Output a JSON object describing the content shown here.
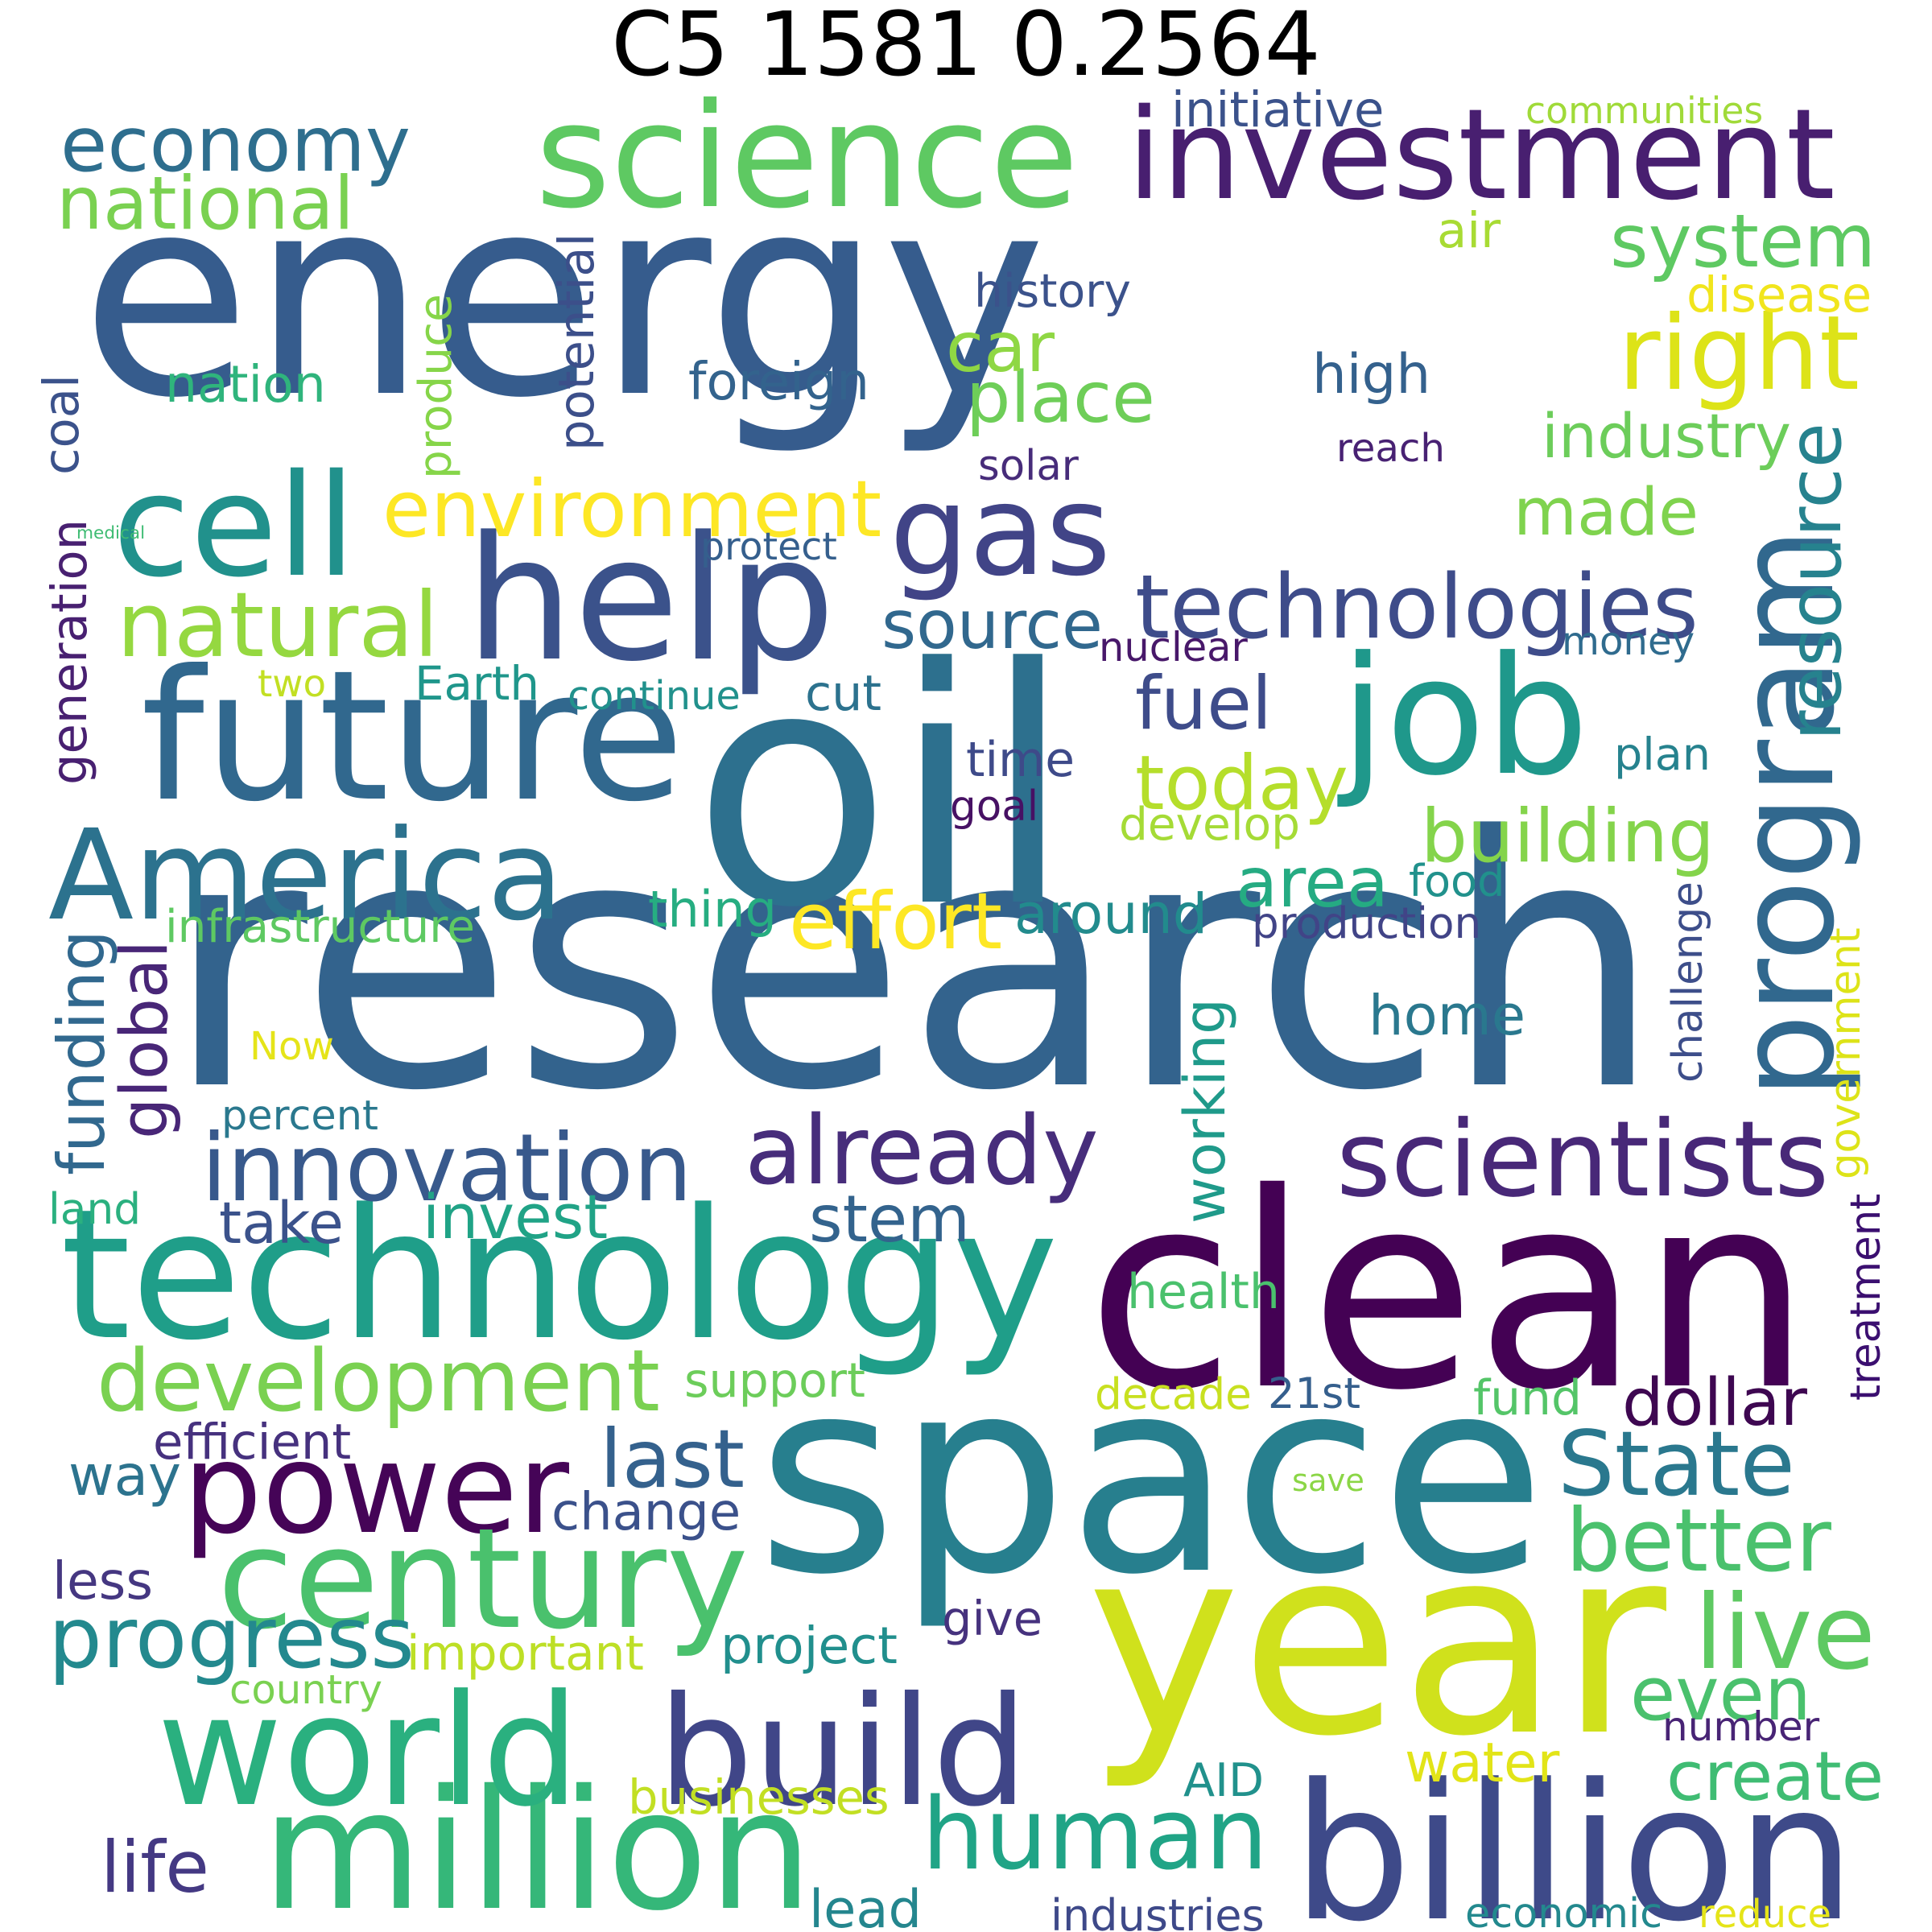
{
  "title": "C5 1581 0.2564",
  "words": [
    {
      "text": "energy",
      "color": "#365c8d"
    },
    {
      "text": "research",
      "color": "#33638d"
    },
    {
      "text": "oil",
      "color": "#2d708e"
    },
    {
      "text": "clean",
      "color": "#440154"
    },
    {
      "text": "space",
      "color": "#277f8e"
    },
    {
      "text": "year",
      "color": "#d0e11c"
    },
    {
      "text": "technology",
      "color": "#1f9e89"
    },
    {
      "text": "science",
      "color": "#5ec962"
    },
    {
      "text": "investment",
      "color": "#481f70"
    },
    {
      "text": "future",
      "color": "#31688e"
    },
    {
      "text": "help",
      "color": "#3b528b"
    },
    {
      "text": "America",
      "color": "#2c728e"
    },
    {
      "text": "program",
      "color": "#31688e"
    },
    {
      "text": "job",
      "color": "#1f988b"
    },
    {
      "text": "gas",
      "color": "#414487"
    },
    {
      "text": "cell",
      "color": "#21918c"
    },
    {
      "text": "billion",
      "color": "#3e4a89"
    },
    {
      "text": "million",
      "color": "#35b779"
    },
    {
      "text": "world",
      "color": "#2ab07f"
    },
    {
      "text": "build",
      "color": "#404688"
    },
    {
      "text": "human",
      "color": "#20a486"
    },
    {
      "text": "power",
      "color": "#450457"
    },
    {
      "text": "century",
      "color": "#4ac16d"
    },
    {
      "text": "economy",
      "color": "#2e6e8e"
    },
    {
      "text": "national",
      "color": "#7ad151"
    },
    {
      "text": "environment",
      "color": "#fde725"
    },
    {
      "text": "natural",
      "color": "#95d840"
    },
    {
      "text": "innovation",
      "color": "#38598c"
    },
    {
      "text": "already",
      "color": "#472d7b"
    },
    {
      "text": "scientists",
      "color": "#482878"
    },
    {
      "text": "technologies",
      "color": "#3e4c8a"
    },
    {
      "text": "development",
      "color": "#7ad151"
    },
    {
      "text": "progress",
      "color": "#23898e"
    },
    {
      "text": "resource",
      "color": "#26828e"
    },
    {
      "text": "system",
      "color": "#5ec962"
    },
    {
      "text": "right",
      "color": "#dde318"
    },
    {
      "text": "made",
      "color": "#7fd34e"
    },
    {
      "text": "industry",
      "color": "#6ccd5a"
    },
    {
      "text": "place",
      "color": "#6ece58"
    },
    {
      "text": "car",
      "color": "#8fd744"
    },
    {
      "text": "source",
      "color": "#31688e"
    },
    {
      "text": "fuel",
      "color": "#3e4c8a"
    },
    {
      "text": "today",
      "color": "#b5de2b"
    },
    {
      "text": "building",
      "color": "#84d44b"
    },
    {
      "text": "area",
      "color": "#25ab82"
    },
    {
      "text": "effort",
      "color": "#fde725"
    },
    {
      "text": "around",
      "color": "#228b8d"
    },
    {
      "text": "State",
      "color": "#2a788e"
    },
    {
      "text": "better",
      "color": "#4ac16d"
    },
    {
      "text": "last",
      "color": "#34618d"
    },
    {
      "text": "way",
      "color": "#2c738e"
    },
    {
      "text": "change",
      "color": "#3b518b"
    },
    {
      "text": "live",
      "color": "#5ec962"
    },
    {
      "text": "even",
      "color": "#4ac16d"
    },
    {
      "text": "create",
      "color": "#3fbc73"
    },
    {
      "text": "dollar",
      "color": "#3e0751"
    },
    {
      "text": "funding",
      "color": "#31688e"
    },
    {
      "text": "global",
      "color": "#482677"
    },
    {
      "text": "working",
      "color": "#1f9a8a"
    },
    {
      "text": "home",
      "color": "#2a788e"
    },
    {
      "text": "invest",
      "color": "#20a386"
    },
    {
      "text": "take",
      "color": "#3b528b"
    },
    {
      "text": "stem",
      "color": "#33638d"
    },
    {
      "text": "life",
      "color": "#443983"
    },
    {
      "text": "lead",
      "color": "#24868e"
    },
    {
      "text": "economic",
      "color": "#23898e"
    },
    {
      "text": "reduce",
      "color": "#e5e419"
    },
    {
      "text": "industries",
      "color": "#3e4989"
    },
    {
      "text": "businesses",
      "color": "#c2df23"
    },
    {
      "text": "water",
      "color": "#e2e418"
    },
    {
      "text": "AID",
      "color": "#21918c"
    },
    {
      "text": "number",
      "color": "#482475"
    },
    {
      "text": "project",
      "color": "#218f8d"
    },
    {
      "text": "give",
      "color": "#46327e"
    },
    {
      "text": "important",
      "color": "#bddf26"
    },
    {
      "text": "country",
      "color": "#7ad151"
    },
    {
      "text": "less",
      "color": "#453781"
    },
    {
      "text": "efficient",
      "color": "#46317e"
    },
    {
      "text": "support",
      "color": "#6ccd5a"
    },
    {
      "text": "decade",
      "color": "#c8e020"
    },
    {
      "text": "21st",
      "color": "#355f8d"
    },
    {
      "text": "fund",
      "color": "#54c568"
    },
    {
      "text": "save",
      "color": "#8bd646"
    },
    {
      "text": "health",
      "color": "#4ac16d"
    },
    {
      "text": "treatment",
      "color": "#3b0f70"
    },
    {
      "text": "government",
      "color": "#dde318"
    },
    {
      "text": "challenge",
      "color": "#3d4e8a"
    },
    {
      "text": "land",
      "color": "#2ab07f"
    },
    {
      "text": "percent",
      "color": "#2a788e"
    },
    {
      "text": "Now",
      "color": "#e5e419"
    },
    {
      "text": "infrastructure",
      "color": "#5ec962"
    },
    {
      "text": "thing",
      "color": "#26ad81"
    },
    {
      "text": "production",
      "color": "#414487"
    },
    {
      "text": "food",
      "color": "#21918c"
    },
    {
      "text": "develop",
      "color": "#a5db36"
    },
    {
      "text": "goal",
      "color": "#471164"
    },
    {
      "text": "time",
      "color": "#3e4a89"
    },
    {
      "text": "plan",
      "color": "#26828e"
    },
    {
      "text": "money",
      "color": "#2f6b8e"
    },
    {
      "text": "nuclear",
      "color": "#48186a"
    },
    {
      "text": "cut",
      "color": "#2c728e"
    },
    {
      "text": "continue",
      "color": "#21918c"
    },
    {
      "text": "Earth",
      "color": "#1f968b"
    },
    {
      "text": "two",
      "color": "#c2df23"
    },
    {
      "text": "generation",
      "color": "#482071"
    },
    {
      "text": "medical",
      "color": "#3fbc73"
    },
    {
      "text": "coal",
      "color": "#3b528b"
    },
    {
      "text": "nation",
      "color": "#2fb47c"
    },
    {
      "text": "produce",
      "color": "#86d549"
    },
    {
      "text": "potential",
      "color": "#3c4f8a"
    },
    {
      "text": "foreign",
      "color": "#33638d"
    },
    {
      "text": "protect",
      "color": "#355f8d"
    },
    {
      "text": "solar",
      "color": "#472c7a"
    },
    {
      "text": "high",
      "color": "#34618d"
    },
    {
      "text": "reach",
      "color": "#482173"
    },
    {
      "text": "history",
      "color": "#3b528b"
    },
    {
      "text": "air",
      "color": "#a8db34"
    },
    {
      "text": "disease",
      "color": "#f1e51d"
    },
    {
      "text": "initiative",
      "color": "#3b528b"
    },
    {
      "text": "communities",
      "color": "#a0da39"
    }
  ]
}
